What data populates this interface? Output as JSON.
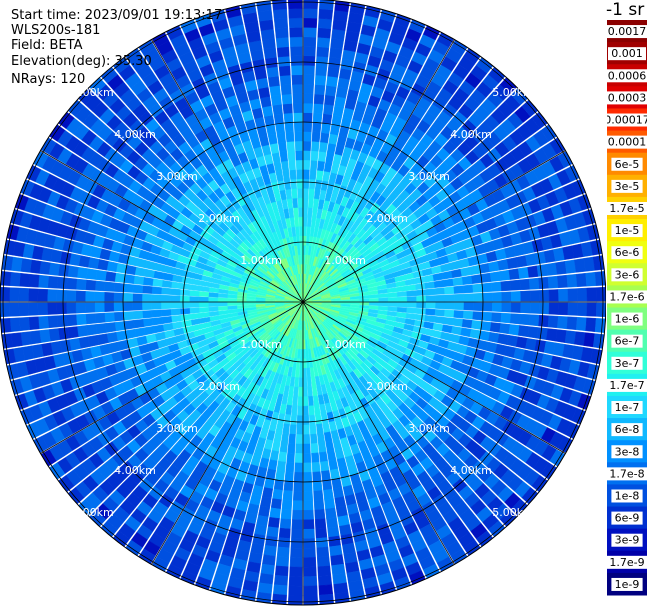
{
  "info": {
    "start_time": "Start time: 2023/09/01 19:13:17",
    "instrument": "WLS200s-181",
    "field": "Field: BETA",
    "elevation": "Elevation(deg): 35.30",
    "nrays": "NRays: 120"
  },
  "chart_data": {
    "type": "heatmap",
    "projection": "polar",
    "title": "",
    "ring_labels": [
      "1.00km",
      "2.00km",
      "3.00km",
      "4.00km",
      "5.00km"
    ],
    "ring_values_km": [
      1,
      2,
      3,
      4,
      5
    ],
    "max_range_km": 5.05,
    "n_rays": 120,
    "grid": true,
    "colorbar": {
      "unit_label": "-1 sr",
      "position": "right",
      "ticks": [
        "0.0017",
        "0.001",
        "0.0006",
        "0.0003",
        "0.00017",
        "0.0001",
        "6e-5",
        "3e-5",
        "1.7e-5",
        "1e-5",
        "6e-6",
        "3e-6",
        "1.7e-6",
        "1e-6",
        "6e-7",
        "3e-7",
        "1.7e-7",
        "1e-7",
        "6e-8",
        "3e-8",
        "1.7e-8",
        "1e-8",
        "6e-9",
        "3e-9",
        "1.7e-9",
        "1e-9"
      ],
      "colors": [
        "#8b0000",
        "#a00000",
        "#c80000",
        "#e00000",
        "#ff2a00",
        "#ff5a00",
        "#ff8a00",
        "#ffb000",
        "#ffd000",
        "#ffee00",
        "#f0ff10",
        "#d0ff30",
        "#a8ff50",
        "#80ff80",
        "#50ffb0",
        "#30ffd8",
        "#20f0f0",
        "#20d8ff",
        "#10b8ff",
        "#0090ff",
        "#0070f0",
        "#0050e0",
        "#0030d0",
        "#0010c0",
        "#0000a8",
        "#000080"
      ]
    },
    "profile": {
      "range_km": [
        0,
        0.5,
        1.0,
        1.5,
        2.0,
        2.5,
        3.0,
        3.5,
        4.0,
        4.5,
        5.0
      ],
      "level_index": [
        13.5,
        14.0,
        15.2,
        16.5,
        17.4,
        18.3,
        19.3,
        20.2,
        20.8,
        21.2,
        21.5
      ]
    }
  }
}
